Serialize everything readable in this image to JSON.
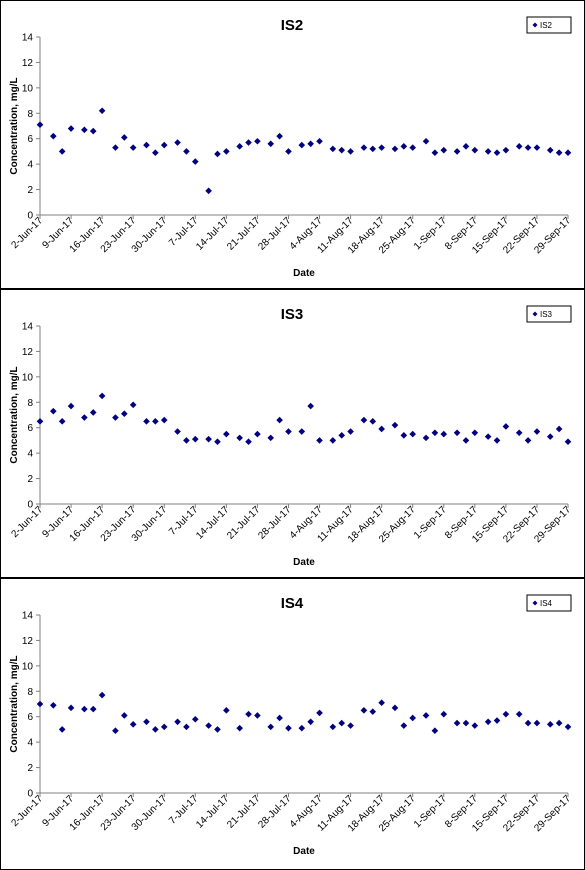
{
  "chart_data": [
    {
      "type": "scatter",
      "title": "IS2",
      "x_label": "Date",
      "y_label": "Concentration, mg/L",
      "marker": "diamond",
      "legend": "top-right",
      "x": [
        "2-Jun-17",
        "5-Jun-17",
        "7-Jun-17",
        "9-Jun-17",
        "12-Jun-17",
        "14-Jun-17",
        "16-Jun-17",
        "19-Jun-17",
        "21-Jun-17",
        "23-Jun-17",
        "26-Jun-17",
        "28-Jun-17",
        "30-Jun-17",
        "3-Jul-17",
        "5-Jul-17",
        "7-Jul-17",
        "10-Jul-17",
        "12-Jul-17",
        "14-Jul-17",
        "17-Jul-17",
        "19-Jul-17",
        "21-Jul-17",
        "24-Jul-17",
        "26-Jul-17",
        "28-Jul-17",
        "31-Jul-17",
        "2-Aug-17",
        "4-Aug-17",
        "7-Aug-17",
        "9-Aug-17",
        "11-Aug-17",
        "14-Aug-17",
        "16-Aug-17",
        "18-Aug-17",
        "21-Aug-17",
        "23-Aug-17",
        "25-Aug-17",
        "28-Aug-17",
        "30-Aug-17",
        "1-Sep-17",
        "4-Sep-17",
        "6-Sep-17",
        "8-Sep-17",
        "11-Sep-17",
        "13-Sep-17",
        "15-Sep-17",
        "18-Sep-17",
        "20-Sep-17",
        "22-Sep-17",
        "25-Sep-17",
        "27-Sep-17",
        "29-Sep-17"
      ],
      "series": [
        {
          "name": "IS2",
          "color": "#000080",
          "values": [
            7.1,
            6.2,
            5.0,
            6.8,
            6.7,
            6.6,
            8.2,
            5.3,
            6.1,
            5.3,
            5.5,
            4.9,
            5.5,
            5.7,
            5.0,
            4.2,
            1.9,
            4.8,
            5.0,
            5.4,
            5.7,
            5.8,
            5.6,
            6.2,
            5.0,
            5.5,
            5.6,
            5.8,
            5.2,
            5.1,
            5.0,
            5.3,
            5.2,
            5.3,
            5.2,
            5.4,
            5.3,
            5.8,
            4.9,
            5.1,
            5.0,
            5.4,
            5.1,
            5.0,
            4.9,
            5.1,
            5.4,
            5.3,
            5.3,
            5.1,
            4.9,
            4.9
          ]
        }
      ],
      "xlim": [
        "2-Jun-17",
        "29-Sep-17"
      ],
      "ylim": [
        0,
        14
      ],
      "yticks": [
        0,
        2,
        4,
        6,
        8,
        10,
        12,
        14
      ],
      "xticks": [
        "2-Jun-17",
        "9-Jun-17",
        "16-Jun-17",
        "23-Jun-17",
        "30-Jun-17",
        "7-Jul-17",
        "14-Jul-17",
        "21-Jul-17",
        "28-Jul-17",
        "4-Aug-17",
        "11-Aug-17",
        "18-Aug-17",
        "25-Aug-17",
        "1-Sep-17",
        "8-Sep-17",
        "15-Sep-17",
        "22-Sep-17",
        "29-Sep-17"
      ]
    },
    {
      "type": "scatter",
      "title": "IS3",
      "x_label": "Date",
      "y_label": "Concentration, mg/L",
      "marker": "diamond",
      "legend": "top-right",
      "x": [
        "2-Jun-17",
        "5-Jun-17",
        "7-Jun-17",
        "9-Jun-17",
        "12-Jun-17",
        "14-Jun-17",
        "16-Jun-17",
        "19-Jun-17",
        "21-Jun-17",
        "23-Jun-17",
        "26-Jun-17",
        "28-Jun-17",
        "30-Jun-17",
        "3-Jul-17",
        "5-Jul-17",
        "7-Jul-17",
        "10-Jul-17",
        "12-Jul-17",
        "14-Jul-17",
        "17-Jul-17",
        "19-Jul-17",
        "21-Jul-17",
        "24-Jul-17",
        "26-Jul-17",
        "28-Jul-17",
        "31-Jul-17",
        "2-Aug-17",
        "4-Aug-17",
        "7-Aug-17",
        "9-Aug-17",
        "11-Aug-17",
        "14-Aug-17",
        "16-Aug-17",
        "18-Aug-17",
        "21-Aug-17",
        "23-Aug-17",
        "25-Aug-17",
        "28-Aug-17",
        "30-Aug-17",
        "1-Sep-17",
        "4-Sep-17",
        "6-Sep-17",
        "8-Sep-17",
        "11-Sep-17",
        "13-Sep-17",
        "15-Sep-17",
        "18-Sep-17",
        "20-Sep-17",
        "22-Sep-17",
        "25-Sep-17",
        "27-Sep-17",
        "29-Sep-17"
      ],
      "series": [
        {
          "name": "IS3",
          "color": "#000080",
          "values": [
            6.5,
            7.3,
            6.5,
            7.7,
            6.8,
            7.2,
            8.5,
            6.8,
            7.1,
            7.8,
            6.5,
            6.5,
            6.6,
            5.7,
            5.0,
            5.1,
            5.1,
            4.9,
            5.5,
            5.2,
            4.9,
            5.5,
            5.2,
            6.6,
            5.7,
            5.7,
            7.7,
            5.0,
            5.0,
            5.4,
            5.7,
            6.6,
            6.5,
            5.9,
            6.2,
            5.4,
            5.5,
            5.2,
            5.6,
            5.5,
            5.6,
            5.0,
            5.6,
            5.3,
            5.0,
            6.1,
            5.6,
            5.0,
            5.7,
            5.3,
            5.9,
            4.9
          ]
        }
      ],
      "xlim": [
        "2-Jun-17",
        "29-Sep-17"
      ],
      "ylim": [
        0,
        14
      ],
      "yticks": [
        0,
        2,
        4,
        6,
        8,
        10,
        12,
        14
      ],
      "xticks": [
        "2-Jun-17",
        "9-Jun-17",
        "16-Jun-17",
        "23-Jun-17",
        "30-Jun-17",
        "7-Jul-17",
        "14-Jul-17",
        "21-Jul-17",
        "28-Jul-17",
        "4-Aug-17",
        "11-Aug-17",
        "18-Aug-17",
        "25-Aug-17",
        "1-Sep-17",
        "8-Sep-17",
        "15-Sep-17",
        "22-Sep-17",
        "29-Sep-17"
      ]
    },
    {
      "type": "scatter",
      "title": "IS4",
      "x_label": "Date",
      "y_label": "Concentration, mg/L",
      "marker": "diamond",
      "legend": "top-right",
      "x": [
        "2-Jun-17",
        "5-Jun-17",
        "7-Jun-17",
        "9-Jun-17",
        "12-Jun-17",
        "14-Jun-17",
        "16-Jun-17",
        "19-Jun-17",
        "21-Jun-17",
        "23-Jun-17",
        "26-Jun-17",
        "28-Jun-17",
        "30-Jun-17",
        "3-Jul-17",
        "5-Jul-17",
        "7-Jul-17",
        "10-Jul-17",
        "12-Jul-17",
        "14-Jul-17",
        "17-Jul-17",
        "19-Jul-17",
        "21-Jul-17",
        "24-Jul-17",
        "26-Jul-17",
        "28-Jul-17",
        "31-Jul-17",
        "2-Aug-17",
        "4-Aug-17",
        "7-Aug-17",
        "9-Aug-17",
        "11-Aug-17",
        "14-Aug-17",
        "16-Aug-17",
        "18-Aug-17",
        "21-Aug-17",
        "23-Aug-17",
        "25-Aug-17",
        "28-Aug-17",
        "30-Aug-17",
        "1-Sep-17",
        "4-Sep-17",
        "6-Sep-17",
        "8-Sep-17",
        "11-Sep-17",
        "13-Sep-17",
        "15-Sep-17",
        "18-Sep-17",
        "20-Sep-17",
        "22-Sep-17",
        "25-Sep-17",
        "27-Sep-17",
        "29-Sep-17"
      ],
      "series": [
        {
          "name": "IS4",
          "color": "#000080",
          "values": [
            7.0,
            6.9,
            5.0,
            6.7,
            6.6,
            6.6,
            7.7,
            4.9,
            6.1,
            5.4,
            5.6,
            5.0,
            5.2,
            5.6,
            5.2,
            5.8,
            5.3,
            5.0,
            6.5,
            5.1,
            6.2,
            6.1,
            5.2,
            5.9,
            5.1,
            5.1,
            5.6,
            6.3,
            5.2,
            5.5,
            5.3,
            6.5,
            6.4,
            7.1,
            6.7,
            5.3,
            5.9,
            6.1,
            4.9,
            6.2,
            5.5,
            5.5,
            5.3,
            5.6,
            5.7,
            6.2,
            6.2,
            5.5,
            5.5,
            5.4,
            5.5,
            5.2
          ]
        }
      ],
      "xlim": [
        "2-Jun-17",
        "29-Sep-17"
      ],
      "ylim": [
        0,
        14
      ],
      "yticks": [
        0,
        2,
        4,
        6,
        8,
        10,
        12,
        14
      ],
      "xticks": [
        "2-Jun-17",
        "9-Jun-17",
        "16-Jun-17",
        "23-Jun-17",
        "30-Jun-17",
        "7-Jul-17",
        "14-Jul-17",
        "21-Jul-17",
        "28-Jul-17",
        "4-Aug-17",
        "11-Aug-17",
        "18-Aug-17",
        "25-Aug-17",
        "1-Sep-17",
        "8-Sep-17",
        "15-Sep-17",
        "22-Sep-17",
        "29-Sep-17"
      ]
    }
  ]
}
